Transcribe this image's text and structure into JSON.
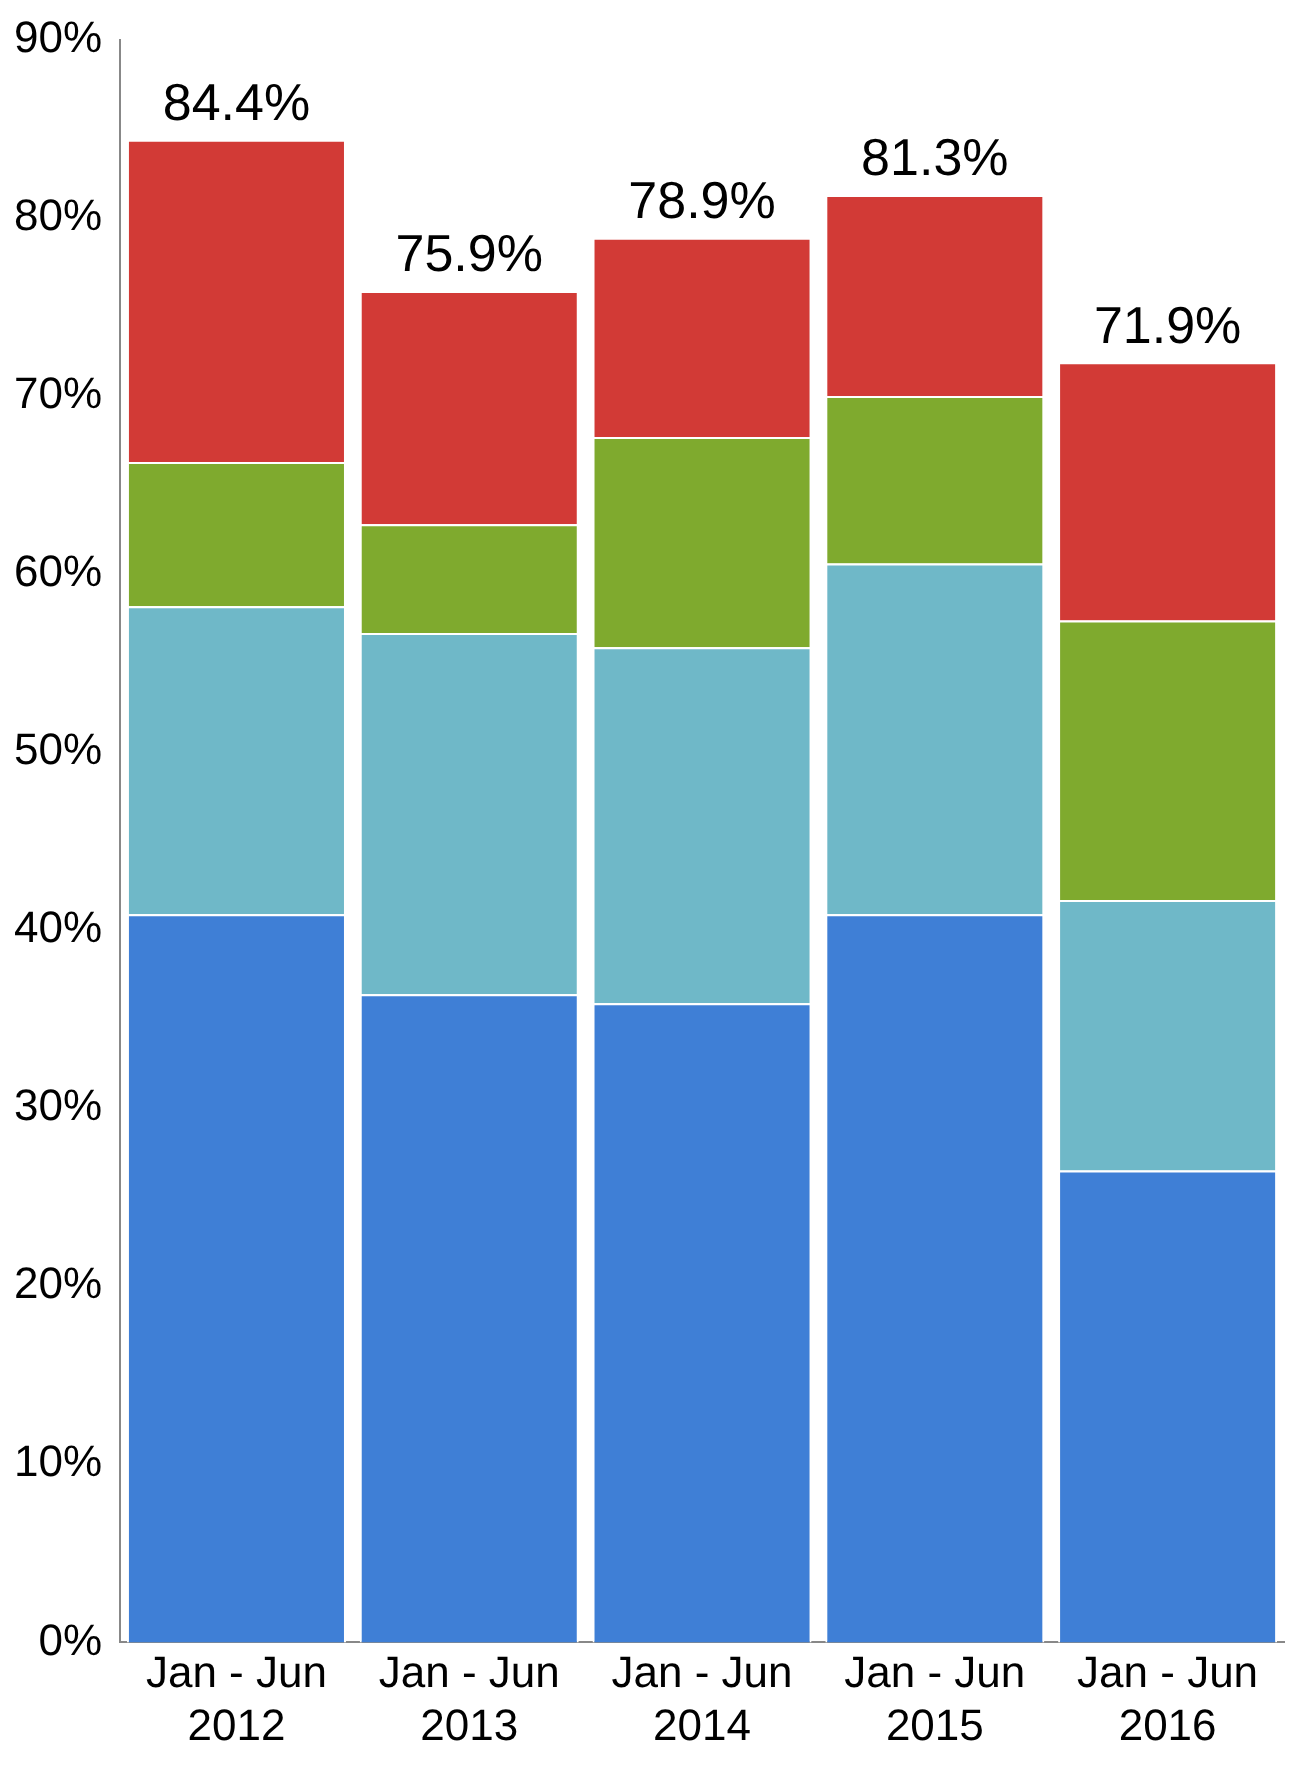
{
  "chart_data": {
    "type": "bar",
    "stacked": true,
    "categories": [
      "Jan - Jun\n2012",
      "Jan - Jun\n2013",
      "Jan - Jun\n2014",
      "Jan - Jun\n2015",
      "Jan - Jun\n2016"
    ],
    "series": [
      {
        "color": "#3f7fd6",
        "values": [
          40.9,
          36.4,
          35.9,
          40.9,
          26.5
        ]
      },
      {
        "color": "#6fb8c8",
        "values": [
          17.3,
          20.3,
          20.0,
          19.7,
          15.2
        ]
      },
      {
        "color": "#7faa2e",
        "values": [
          8.1,
          6.1,
          11.8,
          9.4,
          15.7
        ]
      },
      {
        "color": "#d23a36",
        "values": [
          18.1,
          13.1,
          11.2,
          11.3,
          14.5
        ]
      }
    ],
    "totals": [
      "84.4%",
      "75.9%",
      "78.9%",
      "81.3%",
      "71.9%"
    ],
    "ylim": [
      0,
      90
    ],
    "yticks": [
      {
        "value": 0,
        "label": "0%"
      },
      {
        "value": 10,
        "label": "10%"
      },
      {
        "value": 20,
        "label": "20%"
      },
      {
        "value": 30,
        "label": "30%"
      },
      {
        "value": 40,
        "label": "40%"
      },
      {
        "value": 50,
        "label": "50%"
      },
      {
        "value": 60,
        "label": "60%"
      },
      {
        "value": 70,
        "label": "70%"
      },
      {
        "value": 80,
        "label": "80%"
      },
      {
        "value": 90,
        "label": "90%"
      }
    ],
    "grid": false,
    "legend": false
  }
}
